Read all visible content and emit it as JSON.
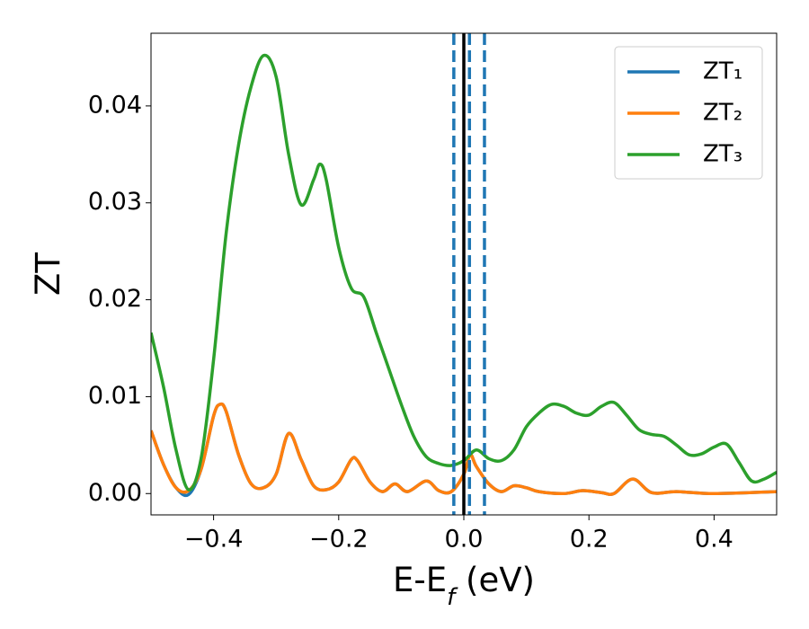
{
  "chart_data": {
    "type": "line",
    "xlabel_parts": [
      "E-E",
      "f",
      " (eV)"
    ],
    "ylabel": "ZT",
    "xlim": [
      -0.5,
      0.5
    ],
    "ylim": [
      -0.0022,
      0.0475
    ],
    "xticks": [
      {
        "value": -0.4,
        "label": "−0.4"
      },
      {
        "value": -0.2,
        "label": "−0.2"
      },
      {
        "value": 0,
        "label": "0.0"
      },
      0.2,
      0.4
    ],
    "yticks": [
      {
        "value": 0,
        "label": "0.00"
      },
      {
        "value": 0.01,
        "label": "0.01"
      },
      {
        "value": 0.02,
        "label": "0.02"
      },
      {
        "value": 0.03,
        "label": "0.03"
      },
      {
        "value": 0.04,
        "label": "0.04"
      }
    ],
    "legend": "upper right",
    "vlines": [
      {
        "x": 0,
        "color": "#000000",
        "style": "solid"
      },
      {
        "x": -0.016,
        "color": "#1f77b4",
        "style": "dashed"
      },
      {
        "x": 0.009,
        "color": "#1f77b4",
        "style": "dashed"
      },
      {
        "x": 0.033,
        "color": "#1f77b4",
        "style": "dashed"
      }
    ],
    "series": [
      {
        "name": "ZT₁",
        "color": "#1f77b4",
        "x": [
          -0.5,
          -0.48,
          -0.46,
          -0.44,
          -0.42,
          -0.4,
          -0.39,
          -0.38,
          -0.36,
          -0.34,
          -0.32,
          -0.3,
          -0.28,
          -0.26,
          -0.24,
          -0.22,
          -0.2,
          -0.18,
          -0.17,
          -0.15,
          -0.13,
          -0.11,
          -0.09,
          -0.06,
          -0.04,
          -0.02,
          0,
          0.01,
          0.02,
          0.04,
          0.06,
          0.08,
          0.1,
          0.12,
          0.16,
          0.19,
          0.22,
          0.24,
          0.27,
          0.3,
          0.34,
          0.4,
          0.5
        ],
        "values": [
          0.0065,
          0.003,
          0.0006,
          -0.0001,
          0.0025,
          0.008,
          0.0092,
          0.0085,
          0.004,
          0.001,
          0.0006,
          0.002,
          0.0062,
          0.0035,
          0.0008,
          0.0004,
          0.0012,
          0.0035,
          0.0034,
          0.0012,
          0.0002,
          0.001,
          0.0002,
          0.0013,
          0.0003,
          0.0002,
          0.002,
          0.004,
          0.0028,
          0.001,
          0.0002,
          0.0008,
          0.0006,
          0.0002,
          0,
          0.0003,
          0.0001,
          0,
          0.0015,
          0.0001,
          0.0002,
          0,
          0.0002
        ]
      },
      {
        "name": "ZT₂",
        "color": "#ff7f0e",
        "x": [
          -0.5,
          -0.48,
          -0.46,
          -0.44,
          -0.42,
          -0.4,
          -0.39,
          -0.38,
          -0.36,
          -0.34,
          -0.32,
          -0.3,
          -0.28,
          -0.26,
          -0.24,
          -0.22,
          -0.2,
          -0.18,
          -0.17,
          -0.15,
          -0.13,
          -0.11,
          -0.09,
          -0.06,
          -0.04,
          -0.02,
          0,
          0.01,
          0.02,
          0.04,
          0.06,
          0.08,
          0.1,
          0.12,
          0.16,
          0.19,
          0.22,
          0.24,
          0.27,
          0.3,
          0.34,
          0.4,
          0.5
        ],
        "values": [
          0.0065,
          0.003,
          0.0006,
          0.0003,
          0.0025,
          0.008,
          0.0092,
          0.0085,
          0.004,
          0.001,
          0.0006,
          0.002,
          0.0062,
          0.0035,
          0.0008,
          0.0004,
          0.0012,
          0.0035,
          0.0034,
          0.0012,
          0.0002,
          0.001,
          0.0002,
          0.0013,
          0.0003,
          0.0002,
          0.002,
          0.004,
          0.0028,
          0.001,
          0.0002,
          0.0008,
          0.0006,
          0.0002,
          0,
          0.0003,
          0.0001,
          0,
          0.0015,
          0.0001,
          0.0002,
          0,
          0.0002
        ]
      },
      {
        "name": "ZT₃",
        "color": "#2ca02c",
        "x": [
          -0.5,
          -0.48,
          -0.46,
          -0.44,
          -0.42,
          -0.4,
          -0.38,
          -0.36,
          -0.34,
          -0.32,
          -0.3,
          -0.28,
          -0.26,
          -0.24,
          -0.23,
          -0.22,
          -0.2,
          -0.18,
          -0.16,
          -0.14,
          -0.12,
          -0.1,
          -0.08,
          -0.06,
          -0.04,
          -0.02,
          0,
          0.02,
          0.04,
          0.06,
          0.08,
          0.1,
          0.12,
          0.14,
          0.16,
          0.18,
          0.2,
          0.22,
          0.24,
          0.26,
          0.28,
          0.3,
          0.32,
          0.34,
          0.36,
          0.38,
          0.4,
          0.42,
          0.44,
          0.46,
          0.48,
          0.5
        ],
        "values": [
          0.0166,
          0.011,
          0.0045,
          0.0004,
          0.0036,
          0.0138,
          0.0268,
          0.036,
          0.042,
          0.0452,
          0.043,
          0.035,
          0.0298,
          0.0324,
          0.034,
          0.0324,
          0.0254,
          0.0212,
          0.0203,
          0.0166,
          0.0129,
          0.0092,
          0.0059,
          0.0038,
          0.0031,
          0.0029,
          0.0034,
          0.0045,
          0.0036,
          0.0034,
          0.0045,
          0.0069,
          0.0083,
          0.0092,
          0.009,
          0.0083,
          0.0081,
          0.009,
          0.0094,
          0.0081,
          0.0066,
          0.0061,
          0.0059,
          0.005,
          0.004,
          0.0041,
          0.0048,
          0.0051,
          0.0032,
          0.0013,
          0.0015,
          0.0022
        ]
      }
    ]
  }
}
